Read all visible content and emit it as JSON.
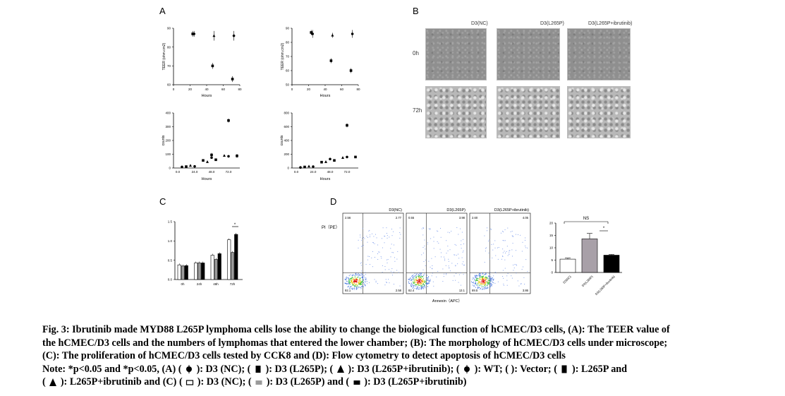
{
  "panels": {
    "A": {
      "letter": "A",
      "teer_ylabel": "TEER (ohm.cm2)",
      "counts_ylabel": "counts",
      "xlabel": "Hours",
      "teer_left_yticks": [
        "60",
        "70",
        "80",
        "90"
      ],
      "teer_right_yticks": [
        "50",
        "60",
        "70",
        "80",
        "90"
      ],
      "teer_xticks": [
        "0",
        "20",
        "40",
        "60",
        "80"
      ],
      "counts_left_yticks": [
        "0",
        "100",
        "200",
        "300",
        "400"
      ],
      "counts_right_yticks": [
        "0",
        "200",
        "400",
        "600",
        "800"
      ],
      "counts_xticks": [
        "0.0",
        "24.0",
        "48.0",
        "72.0"
      ]
    },
    "B": {
      "letter": "B",
      "columns": [
        "D3(NC)",
        "D3(L265P)",
        "D3(L265P+ibrutinib)"
      ],
      "rows": [
        "0h",
        "72h"
      ]
    },
    "C": {
      "letter": "C",
      "yticks": [
        "0.0",
        "0.5",
        "1.0",
        "1.5"
      ],
      "xticks": [
        "0h",
        "24h",
        "48h",
        "72h"
      ],
      "star": "*"
    },
    "D": {
      "letter": "D",
      "ylabel": "PI（PE）",
      "xlabel": "Annexin（APC）",
      "flow": [
        {
          "title": "D3(NC)",
          "q_ul": "2.56",
          "q_ur": "2.77",
          "q_ll": "92.1",
          "q_lr": "2.58"
        },
        {
          "title": "D3(L265P)",
          "q_ul": "0.55",
          "q_ur": "3.98",
          "q_ll": "82.4",
          "q_lr": "13.1"
        },
        {
          "title": "D3(L265P+ibrutinib)",
          "q_ul": "2.60",
          "q_ur": "4.05",
          "q_ll": "89.5",
          "q_lr": "3.86"
        }
      ],
      "bar_ns": "NS",
      "bar_star": "*",
      "bar_yticks": [
        "0",
        "5",
        "10",
        "15",
        "20"
      ],
      "bar_xticks": [
        "D3(NC)",
        "D3(L265P)",
        "D3(L265P+ibrutinib)"
      ]
    }
  },
  "chart_data": [
    {
      "type": "scatter",
      "title": "",
      "xlabel": "Hours",
      "ylabel": "TEER (ohm.cm2)",
      "xlim": [
        0,
        80
      ],
      "ylim": [
        60,
        90
      ],
      "series": [
        {
          "x": [
            24,
            48,
            72
          ],
          "y": [
            87,
            70,
            63
          ],
          "err": [
            1,
            1,
            1
          ]
        },
        {
          "x": [
            24,
            48,
            72
          ],
          "y": [
            87,
            86,
            86
          ],
          "err": [
            1,
            2,
            2
          ]
        }
      ]
    },
    {
      "type": "scatter",
      "title": "",
      "xlabel": "Hours",
      "ylabel": "TEER (ohm.cm2)",
      "xlim": [
        0,
        80
      ],
      "ylim": [
        50,
        90
      ],
      "series": [
        {
          "x": [
            24,
            48,
            72
          ],
          "y": [
            87,
            67,
            60
          ],
          "err": [
            1,
            1,
            1
          ]
        },
        {
          "x": [
            24,
            48,
            72
          ],
          "y": [
            86,
            85,
            86
          ],
          "err": [
            2,
            1,
            2
          ]
        }
      ]
    },
    {
      "type": "scatter",
      "title": "",
      "xlabel": "Hours",
      "ylabel": "counts",
      "ylim": [
        0,
        400
      ],
      "series": [
        {
          "x": [
            6,
            12,
            18,
            24,
            36,
            42,
            48,
            54,
            66,
            72
          ],
          "y": [
            8,
            10,
            18,
            12,
            55,
            45,
            75,
            60,
            90,
            85
          ]
        },
        {
          "x": [
            48,
            72,
            84
          ],
          "y": [
            95,
            345,
            88
          ]
        }
      ]
    },
    {
      "type": "scatter",
      "title": "",
      "xlabel": "Hours",
      "ylabel": "counts",
      "ylim": [
        0,
        800
      ],
      "series": [
        {
          "x": [
            6,
            12,
            18,
            24,
            36,
            42,
            48,
            54,
            66,
            72,
            84
          ],
          "y": [
            8,
            15,
            25,
            20,
            85,
            90,
            130,
            110,
            150,
            160,
            160
          ]
        },
        {
          "x": [
            72
          ],
          "y": [
            620
          ]
        }
      ]
    },
    {
      "type": "bar",
      "categories": [
        "0h",
        "24h",
        "48h",
        "72h"
      ],
      "ylim": [
        0,
        1.5
      ],
      "series": [
        {
          "name": "D3 (NC)",
          "values": [
            0.38,
            0.43,
            0.63,
            1.03
          ]
        },
        {
          "name": "D3 (L265P)",
          "values": [
            0.35,
            0.43,
            0.52,
            0.7
          ]
        },
        {
          "name": "D3 (L265P+ibrutinib)",
          "values": [
            0.36,
            0.43,
            0.67,
            1.17
          ]
        }
      ]
    },
    {
      "type": "bar",
      "categories": [
        "D3(NC)",
        "D3(L265P)",
        "D3(L265P+ibrutinib)"
      ],
      "ylim": [
        0,
        20
      ],
      "values": [
        5.4,
        13.6,
        7.0
      ],
      "errors": [
        0.4,
        2.2,
        0.3
      ]
    }
  ],
  "caption": {
    "line1": "Fig. 3: Ibrutinib made MYD88 L265P lymphoma cells lose the ability to change the biological function of hCMEC/D3 cells, (A): The TEER value of",
    "line2": "the hCMEC/D3 cells and the numbers of lymphomas that entered the lower chamber; (B): The morphology of hCMEC/D3 cells under microscope;",
    "line3": "(C): The proliferation of hCMEC/D3 cells tested by CCK8 and (D): Flow cytometry to detect apoptosis of hCMEC/D3 cells",
    "note_prefix": "Note: *p<0.05 and *p<0.05, (A) (",
    "n1": "): D3 (NC); (",
    "n2": "): D3 (L265P); (",
    "n3": "): D3 (L265P+ibrutinib); (",
    "n4": "): WT; ( ): Vector; (",
    "n5": "): L265P and",
    "n6_open": "(",
    "n6": "): L265P+ibrutinib and (C) (",
    "n7": "): D3 (NC); (",
    "n8": "): D3 (L265P) and (",
    "n9": "): D3 (L265P+ibrutinib)"
  }
}
